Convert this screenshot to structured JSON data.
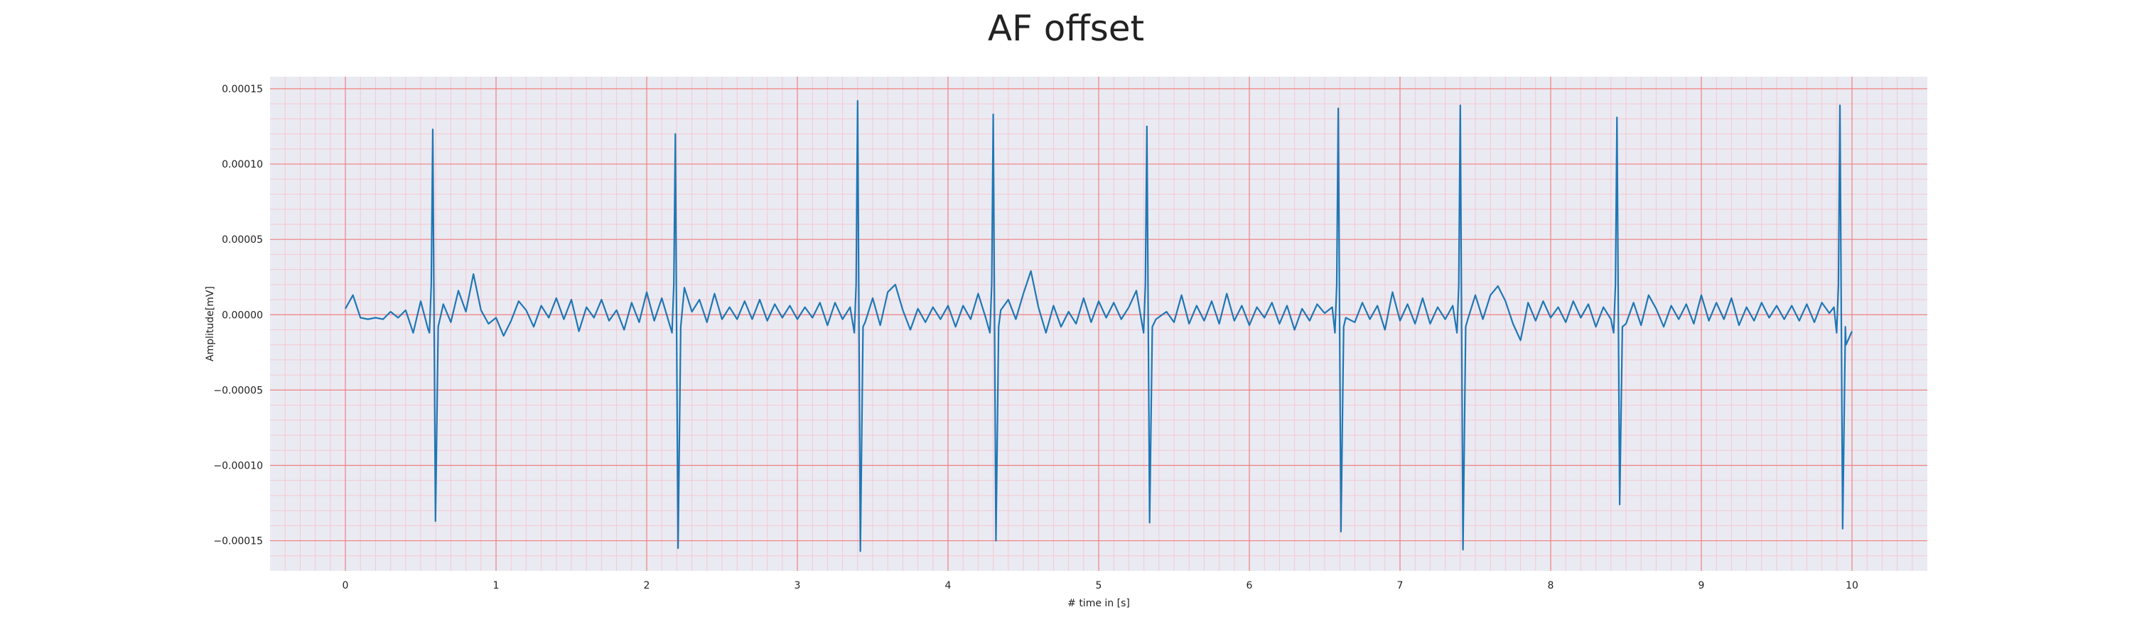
{
  "chart_data": {
    "type": "line",
    "title": "AF offset",
    "xlabel": "# time in [s]",
    "ylabel": "Amplitude[mV]",
    "xlim": [
      -0.5,
      10.5
    ],
    "ylim": [
      -0.00017,
      0.000158
    ],
    "xticks": [
      "0",
      "1",
      "2",
      "3",
      "4",
      "5",
      "6",
      "7",
      "8",
      "9",
      "10"
    ],
    "yticks": [
      "0.00015",
      "0.00010",
      "0.00005",
      "0.00000",
      "−0.00005",
      "−0.00010",
      "−0.00015"
    ],
    "grid": true,
    "colors": {
      "background": "#eaeaf2",
      "major_grid": "#f08080",
      "minor_grid": "#f5c8d2",
      "line": "#1f77b4"
    },
    "series": [
      {
        "name": "",
        "beats": [
          {
            "t": 0.58,
            "r": 0.000123,
            "s": -0.000137
          },
          {
            "t": 2.19,
            "r": 0.00012,
            "s": -0.000155
          },
          {
            "t": 3.4,
            "r": 0.000142,
            "s": -0.000157
          },
          {
            "t": 4.3,
            "r": 0.000133,
            "s": -0.00015
          },
          {
            "t": 5.32,
            "r": 0.000125,
            "s": -0.000138
          },
          {
            "t": 6.59,
            "r": 0.000137,
            "s": -0.000144
          },
          {
            "t": 7.4,
            "r": 0.000139,
            "s": -0.000156
          },
          {
            "t": 8.44,
            "r": 0.000131,
            "s": -0.000126
          },
          {
            "t": 9.92,
            "r": 0.000139,
            "s": -0.000142
          }
        ],
        "baseline_points": [
          [
            0.0,
            4e-06
          ],
          [
            0.05,
            1.3e-05
          ],
          [
            0.1,
            -2e-06
          ],
          [
            0.15,
            -3e-06
          ],
          [
            0.2,
            -2e-06
          ],
          [
            0.25,
            -3e-06
          ],
          [
            0.3,
            2e-06
          ],
          [
            0.35,
            -2e-06
          ],
          [
            0.4,
            3e-06
          ],
          [
            0.45,
            -1.2e-05
          ],
          [
            0.5,
            9e-06
          ],
          [
            0.55,
            -1e-05
          ],
          [
            0.65,
            7e-06
          ],
          [
            0.7,
            -5e-06
          ],
          [
            0.75,
            1.6e-05
          ],
          [
            0.8,
            2e-06
          ],
          [
            0.85,
            2.7e-05
          ],
          [
            0.9,
            3e-06
          ],
          [
            0.95,
            -6e-06
          ],
          [
            1.0,
            -2e-06
          ],
          [
            1.05,
            -1.4e-05
          ],
          [
            1.1,
            -4e-06
          ],
          [
            1.15,
            9e-06
          ],
          [
            1.2,
            3e-06
          ],
          [
            1.25,
            -8e-06
          ],
          [
            1.3,
            6e-06
          ],
          [
            1.35,
            -2e-06
          ],
          [
            1.4,
            1.1e-05
          ],
          [
            1.45,
            -3e-06
          ],
          [
            1.5,
            1e-05
          ],
          [
            1.55,
            -1.1e-05
          ],
          [
            1.6,
            5e-06
          ],
          [
            1.65,
            -2e-06
          ],
          [
            1.7,
            1e-05
          ],
          [
            1.75,
            -4e-06
          ],
          [
            1.8,
            3e-06
          ],
          [
            1.85,
            -1e-05
          ],
          [
            1.9,
            8e-06
          ],
          [
            1.95,
            -5e-06
          ],
          [
            2.0,
            1.5e-05
          ],
          [
            2.05,
            -4e-06
          ],
          [
            2.1,
            1.1e-05
          ],
          [
            2.25,
            1.8e-05
          ],
          [
            2.3,
            2e-06
          ],
          [
            2.35,
            1e-05
          ],
          [
            2.4,
            -5e-06
          ],
          [
            2.45,
            1.4e-05
          ],
          [
            2.5,
            -3e-06
          ],
          [
            2.55,
            5e-06
          ],
          [
            2.6,
            -3e-06
          ],
          [
            2.65,
            9e-06
          ],
          [
            2.7,
            -3e-06
          ],
          [
            2.75,
            1e-05
          ],
          [
            2.8,
            -4e-06
          ],
          [
            2.85,
            7e-06
          ],
          [
            2.9,
            -2e-06
          ],
          [
            2.95,
            6e-06
          ],
          [
            3.0,
            -3e-06
          ],
          [
            3.05,
            5e-06
          ],
          [
            3.1,
            -2e-06
          ],
          [
            3.15,
            8e-06
          ],
          [
            3.2,
            -7e-06
          ],
          [
            3.25,
            8e-06
          ],
          [
            3.3,
            -3e-06
          ],
          [
            3.35,
            5e-06
          ],
          [
            3.45,
            -5e-06
          ],
          [
            3.5,
            1.1e-05
          ],
          [
            3.55,
            -7e-06
          ],
          [
            3.6,
            1.5e-05
          ],
          [
            3.65,
            2e-05
          ],
          [
            3.7,
            3e-06
          ],
          [
            3.75,
            -1e-05
          ],
          [
            3.8,
            4e-06
          ],
          [
            3.85,
            -5e-06
          ],
          [
            3.9,
            5e-06
          ],
          [
            3.95,
            -3e-06
          ],
          [
            4.0,
            6e-06
          ],
          [
            4.05,
            -8e-06
          ],
          [
            4.1,
            6e-06
          ],
          [
            4.15,
            -3e-06
          ],
          [
            4.2,
            1.4e-05
          ],
          [
            4.25,
            -2e-06
          ],
          [
            4.35,
            3e-06
          ],
          [
            4.4,
            1e-05
          ],
          [
            4.45,
            -3e-06
          ],
          [
            4.5,
            1.4e-05
          ],
          [
            4.55,
            2.9e-05
          ],
          [
            4.6,
            5e-06
          ],
          [
            4.65,
            -1.2e-05
          ],
          [
            4.7,
            6e-06
          ],
          [
            4.75,
            -8e-06
          ],
          [
            4.8,
            2e-06
          ],
          [
            4.85,
            -6e-06
          ],
          [
            4.9,
            1.1e-05
          ],
          [
            4.95,
            -5e-06
          ],
          [
            5.0,
            9e-06
          ],
          [
            5.05,
            -2e-06
          ],
          [
            5.1,
            8e-06
          ],
          [
            5.15,
            -3e-06
          ],
          [
            5.2,
            5e-06
          ],
          [
            5.25,
            1.6e-05
          ],
          [
            5.38,
            -3e-06
          ],
          [
            5.45,
            2e-06
          ],
          [
            5.5,
            -5e-06
          ],
          [
            5.55,
            1.3e-05
          ],
          [
            5.6,
            -6e-06
          ],
          [
            5.65,
            6e-06
          ],
          [
            5.7,
            -4e-06
          ],
          [
            5.75,
            9e-06
          ],
          [
            5.8,
            -6e-06
          ],
          [
            5.85,
            1.4e-05
          ],
          [
            5.9,
            -4e-06
          ],
          [
            5.95,
            6e-06
          ],
          [
            6.0,
            -7e-06
          ],
          [
            6.05,
            5e-06
          ],
          [
            6.1,
            -2e-06
          ],
          [
            6.15,
            8e-06
          ],
          [
            6.2,
            -6e-06
          ],
          [
            6.25,
            6e-06
          ],
          [
            6.3,
            -1e-05
          ],
          [
            6.35,
            4e-06
          ],
          [
            6.4,
            -4e-06
          ],
          [
            6.45,
            7e-06
          ],
          [
            6.5,
            1e-06
          ],
          [
            6.55,
            5e-06
          ],
          [
            6.64,
            -2e-06
          ],
          [
            6.7,
            -5e-06
          ],
          [
            6.75,
            8e-06
          ],
          [
            6.8,
            -3e-06
          ],
          [
            6.85,
            6e-06
          ],
          [
            6.9,
            -1e-05
          ],
          [
            6.95,
            1.5e-05
          ],
          [
            7.0,
            -4e-06
          ],
          [
            7.05,
            7e-06
          ],
          [
            7.1,
            -6e-06
          ],
          [
            7.15,
            1.1e-05
          ],
          [
            7.2,
            -6e-06
          ],
          [
            7.25,
            5e-06
          ],
          [
            7.3,
            -3e-06
          ],
          [
            7.35,
            6e-06
          ],
          [
            7.45,
            -3e-06
          ],
          [
            7.5,
            1.3e-05
          ],
          [
            7.55,
            -3e-06
          ],
          [
            7.6,
            1.3e-05
          ],
          [
            7.65,
            1.9e-05
          ],
          [
            7.7,
            9e-06
          ],
          [
            7.75,
            -6e-06
          ],
          [
            7.8,
            -1.7e-05
          ],
          [
            7.85,
            8e-06
          ],
          [
            7.9,
            -4e-06
          ],
          [
            7.95,
            9e-06
          ],
          [
            8.0,
            -2e-06
          ],
          [
            8.05,
            5e-06
          ],
          [
            8.1,
            -5e-06
          ],
          [
            8.15,
            9e-06
          ],
          [
            8.2,
            -2e-06
          ],
          [
            8.25,
            7e-06
          ],
          [
            8.3,
            -8e-06
          ],
          [
            8.35,
            5e-06
          ],
          [
            8.4,
            -3e-06
          ],
          [
            8.5,
            -6e-06
          ],
          [
            8.55,
            8e-06
          ],
          [
            8.6,
            -7e-06
          ],
          [
            8.65,
            1.3e-05
          ],
          [
            8.7,
            4e-06
          ],
          [
            8.75,
            -8e-06
          ],
          [
            8.8,
            6e-06
          ],
          [
            8.85,
            -3e-06
          ],
          [
            8.9,
            7e-06
          ],
          [
            8.95,
            -6e-06
          ],
          [
            9.0,
            1.3e-05
          ],
          [
            9.05,
            -4e-06
          ],
          [
            9.1,
            8e-06
          ],
          [
            9.15,
            -3e-06
          ],
          [
            9.2,
            1.1e-05
          ],
          [
            9.25,
            -7e-06
          ],
          [
            9.3,
            5e-06
          ],
          [
            9.35,
            -4e-06
          ],
          [
            9.4,
            8e-06
          ],
          [
            9.45,
            -2e-06
          ],
          [
            9.5,
            6e-06
          ],
          [
            9.55,
            -3e-06
          ],
          [
            9.6,
            6e-06
          ],
          [
            9.65,
            -4e-06
          ],
          [
            9.7,
            7e-06
          ],
          [
            9.75,
            -5e-06
          ],
          [
            9.8,
            8e-06
          ],
          [
            9.85,
            1e-06
          ],
          [
            9.88,
            5e-06
          ],
          [
            9.96,
            -2e-05
          ],
          [
            10.0,
            -1.1e-05
          ]
        ]
      }
    ]
  }
}
